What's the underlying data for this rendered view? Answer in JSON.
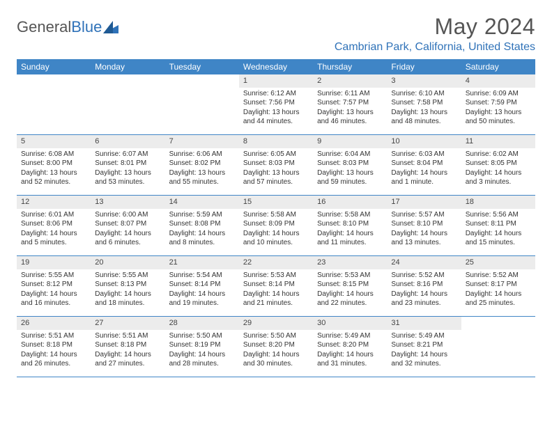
{
  "logo": {
    "text1": "General",
    "text2": "Blue"
  },
  "title": "May 2024",
  "location": "Cambrian Park, California, United States",
  "colors": {
    "header_bg": "#3f85c6",
    "accent": "#2f72b8",
    "daynum_bg": "#ececec",
    "text": "#333333",
    "title_text": "#555555"
  },
  "day_labels": [
    "Sunday",
    "Monday",
    "Tuesday",
    "Wednesday",
    "Thursday",
    "Friday",
    "Saturday"
  ],
  "weeks": [
    [
      {
        "n": "",
        "sr": "",
        "ss": "",
        "dl": ""
      },
      {
        "n": "",
        "sr": "",
        "ss": "",
        "dl": ""
      },
      {
        "n": "",
        "sr": "",
        "ss": "",
        "dl": ""
      },
      {
        "n": "1",
        "sr": "Sunrise: 6:12 AM",
        "ss": "Sunset: 7:56 PM",
        "dl": "Daylight: 13 hours and 44 minutes."
      },
      {
        "n": "2",
        "sr": "Sunrise: 6:11 AM",
        "ss": "Sunset: 7:57 PM",
        "dl": "Daylight: 13 hours and 46 minutes."
      },
      {
        "n": "3",
        "sr": "Sunrise: 6:10 AM",
        "ss": "Sunset: 7:58 PM",
        "dl": "Daylight: 13 hours and 48 minutes."
      },
      {
        "n": "4",
        "sr": "Sunrise: 6:09 AM",
        "ss": "Sunset: 7:59 PM",
        "dl": "Daylight: 13 hours and 50 minutes."
      }
    ],
    [
      {
        "n": "5",
        "sr": "Sunrise: 6:08 AM",
        "ss": "Sunset: 8:00 PM",
        "dl": "Daylight: 13 hours and 52 minutes."
      },
      {
        "n": "6",
        "sr": "Sunrise: 6:07 AM",
        "ss": "Sunset: 8:01 PM",
        "dl": "Daylight: 13 hours and 53 minutes."
      },
      {
        "n": "7",
        "sr": "Sunrise: 6:06 AM",
        "ss": "Sunset: 8:02 PM",
        "dl": "Daylight: 13 hours and 55 minutes."
      },
      {
        "n": "8",
        "sr": "Sunrise: 6:05 AM",
        "ss": "Sunset: 8:03 PM",
        "dl": "Daylight: 13 hours and 57 minutes."
      },
      {
        "n": "9",
        "sr": "Sunrise: 6:04 AM",
        "ss": "Sunset: 8:03 PM",
        "dl": "Daylight: 13 hours and 59 minutes."
      },
      {
        "n": "10",
        "sr": "Sunrise: 6:03 AM",
        "ss": "Sunset: 8:04 PM",
        "dl": "Daylight: 14 hours and 1 minute."
      },
      {
        "n": "11",
        "sr": "Sunrise: 6:02 AM",
        "ss": "Sunset: 8:05 PM",
        "dl": "Daylight: 14 hours and 3 minutes."
      }
    ],
    [
      {
        "n": "12",
        "sr": "Sunrise: 6:01 AM",
        "ss": "Sunset: 8:06 PM",
        "dl": "Daylight: 14 hours and 5 minutes."
      },
      {
        "n": "13",
        "sr": "Sunrise: 6:00 AM",
        "ss": "Sunset: 8:07 PM",
        "dl": "Daylight: 14 hours and 6 minutes."
      },
      {
        "n": "14",
        "sr": "Sunrise: 5:59 AM",
        "ss": "Sunset: 8:08 PM",
        "dl": "Daylight: 14 hours and 8 minutes."
      },
      {
        "n": "15",
        "sr": "Sunrise: 5:58 AM",
        "ss": "Sunset: 8:09 PM",
        "dl": "Daylight: 14 hours and 10 minutes."
      },
      {
        "n": "16",
        "sr": "Sunrise: 5:58 AM",
        "ss": "Sunset: 8:10 PM",
        "dl": "Daylight: 14 hours and 11 minutes."
      },
      {
        "n": "17",
        "sr": "Sunrise: 5:57 AM",
        "ss": "Sunset: 8:10 PM",
        "dl": "Daylight: 14 hours and 13 minutes."
      },
      {
        "n": "18",
        "sr": "Sunrise: 5:56 AM",
        "ss": "Sunset: 8:11 PM",
        "dl": "Daylight: 14 hours and 15 minutes."
      }
    ],
    [
      {
        "n": "19",
        "sr": "Sunrise: 5:55 AM",
        "ss": "Sunset: 8:12 PM",
        "dl": "Daylight: 14 hours and 16 minutes."
      },
      {
        "n": "20",
        "sr": "Sunrise: 5:55 AM",
        "ss": "Sunset: 8:13 PM",
        "dl": "Daylight: 14 hours and 18 minutes."
      },
      {
        "n": "21",
        "sr": "Sunrise: 5:54 AM",
        "ss": "Sunset: 8:14 PM",
        "dl": "Daylight: 14 hours and 19 minutes."
      },
      {
        "n": "22",
        "sr": "Sunrise: 5:53 AM",
        "ss": "Sunset: 8:14 PM",
        "dl": "Daylight: 14 hours and 21 minutes."
      },
      {
        "n": "23",
        "sr": "Sunrise: 5:53 AM",
        "ss": "Sunset: 8:15 PM",
        "dl": "Daylight: 14 hours and 22 minutes."
      },
      {
        "n": "24",
        "sr": "Sunrise: 5:52 AM",
        "ss": "Sunset: 8:16 PM",
        "dl": "Daylight: 14 hours and 23 minutes."
      },
      {
        "n": "25",
        "sr": "Sunrise: 5:52 AM",
        "ss": "Sunset: 8:17 PM",
        "dl": "Daylight: 14 hours and 25 minutes."
      }
    ],
    [
      {
        "n": "26",
        "sr": "Sunrise: 5:51 AM",
        "ss": "Sunset: 8:18 PM",
        "dl": "Daylight: 14 hours and 26 minutes."
      },
      {
        "n": "27",
        "sr": "Sunrise: 5:51 AM",
        "ss": "Sunset: 8:18 PM",
        "dl": "Daylight: 14 hours and 27 minutes."
      },
      {
        "n": "28",
        "sr": "Sunrise: 5:50 AM",
        "ss": "Sunset: 8:19 PM",
        "dl": "Daylight: 14 hours and 28 minutes."
      },
      {
        "n": "29",
        "sr": "Sunrise: 5:50 AM",
        "ss": "Sunset: 8:20 PM",
        "dl": "Daylight: 14 hours and 30 minutes."
      },
      {
        "n": "30",
        "sr": "Sunrise: 5:49 AM",
        "ss": "Sunset: 8:20 PM",
        "dl": "Daylight: 14 hours and 31 minutes."
      },
      {
        "n": "31",
        "sr": "Sunrise: 5:49 AM",
        "ss": "Sunset: 8:21 PM",
        "dl": "Daylight: 14 hours and 32 minutes."
      },
      {
        "n": "",
        "sr": "",
        "ss": "",
        "dl": ""
      }
    ]
  ]
}
